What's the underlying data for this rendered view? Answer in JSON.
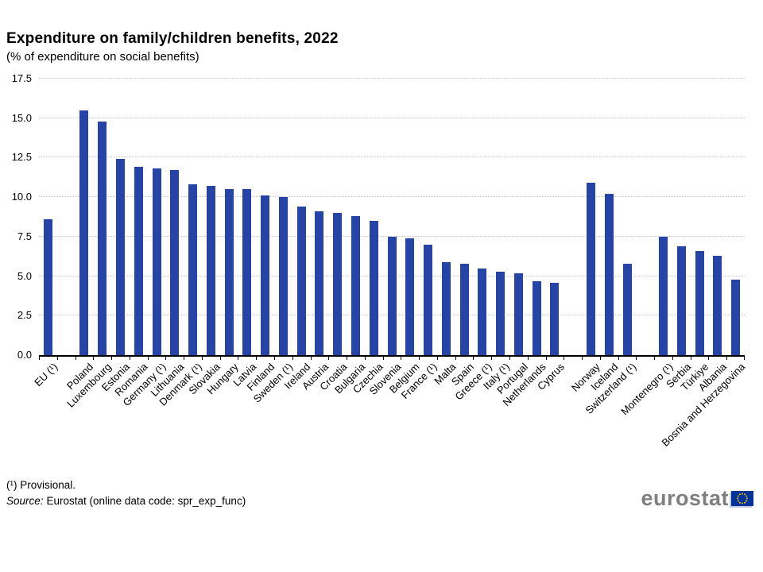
{
  "chart_data": {
    "type": "bar",
    "title": "Expenditure on family/children benefits, 2022",
    "subtitle": "(% of expenditure on social benefits)",
    "xlabel": "",
    "ylabel": "",
    "ylim": [
      0,
      17.5
    ],
    "ytick_step": 2.5,
    "ytick_labels": [
      "0.0",
      "2.5",
      "5.0",
      "7.5",
      "10.0",
      "12.5",
      "15.0",
      "17.5"
    ],
    "grid": "horizontal dotted gridlines, solid black baseline, tick marks between categories",
    "legend": "none",
    "bar_color": "#2644a7",
    "gridline_color": "#c6c6c6",
    "axis_color": "#000000",
    "groups": [
      {
        "items": [
          {
            "label": "EU (¹)",
            "value": 8.6
          }
        ]
      },
      {
        "items": [
          {
            "label": "Poland",
            "value": 15.5
          },
          {
            "label": "Luxembourg",
            "value": 14.8
          },
          {
            "label": "Estonia",
            "value": 12.4
          },
          {
            "label": "Romania",
            "value": 11.9
          },
          {
            "label": "Germany (¹)",
            "value": 11.8
          },
          {
            "label": "Lithuania",
            "value": 11.7
          },
          {
            "label": "Denmark (¹)",
            "value": 10.8
          },
          {
            "label": "Slovakia",
            "value": 10.7
          },
          {
            "label": "Hungary",
            "value": 10.5
          },
          {
            "label": "Latvia",
            "value": 10.5
          },
          {
            "label": "Finland",
            "value": 10.1
          },
          {
            "label": "Sweden (¹)",
            "value": 10.0
          },
          {
            "label": "Ireland",
            "value": 9.4
          },
          {
            "label": "Austria",
            "value": 9.1
          },
          {
            "label": "Croatia",
            "value": 9.0
          },
          {
            "label": "Bulgaria",
            "value": 8.8
          },
          {
            "label": "Czechia",
            "value": 8.5
          },
          {
            "label": "Slovenia",
            "value": 7.5
          },
          {
            "label": "Belgium",
            "value": 7.4
          },
          {
            "label": "France (¹)",
            "value": 7.0
          },
          {
            "label": "Malta",
            "value": 5.9
          },
          {
            "label": "Spain",
            "value": 5.8
          },
          {
            "label": "Greece (¹)",
            "value": 5.5
          },
          {
            "label": "Italy (¹)",
            "value": 5.3
          },
          {
            "label": "Portugal",
            "value": 5.2
          },
          {
            "label": "Netherlands",
            "value": 4.7
          },
          {
            "label": "Cyprus",
            "value": 4.6
          }
        ]
      },
      {
        "items": [
          {
            "label": "Norway",
            "value": 10.9
          },
          {
            "label": "Iceland",
            "value": 10.2
          },
          {
            "label": "Switzerland (¹)",
            "value": 5.8
          }
        ]
      },
      {
        "items": [
          {
            "label": "Montenegro (¹)",
            "value": 7.5
          },
          {
            "label": "Serbia",
            "value": 6.9
          },
          {
            "label": "Türkiye",
            "value": 6.6
          },
          {
            "label": "Albania",
            "value": 6.3
          },
          {
            "label": "Bosnia and Herzegovina",
            "value": 4.8
          }
        ]
      }
    ]
  },
  "footnotes": {
    "provisional": "(¹) Provisional.",
    "source_label": "Source:",
    "source_text": "Eurostat (online data code: spr_exp_func)"
  },
  "logo": {
    "text": "eurostat",
    "text_color": "#7f7f7f",
    "flag_blue": "#003399",
    "star_yellow": "#ffcc00"
  }
}
